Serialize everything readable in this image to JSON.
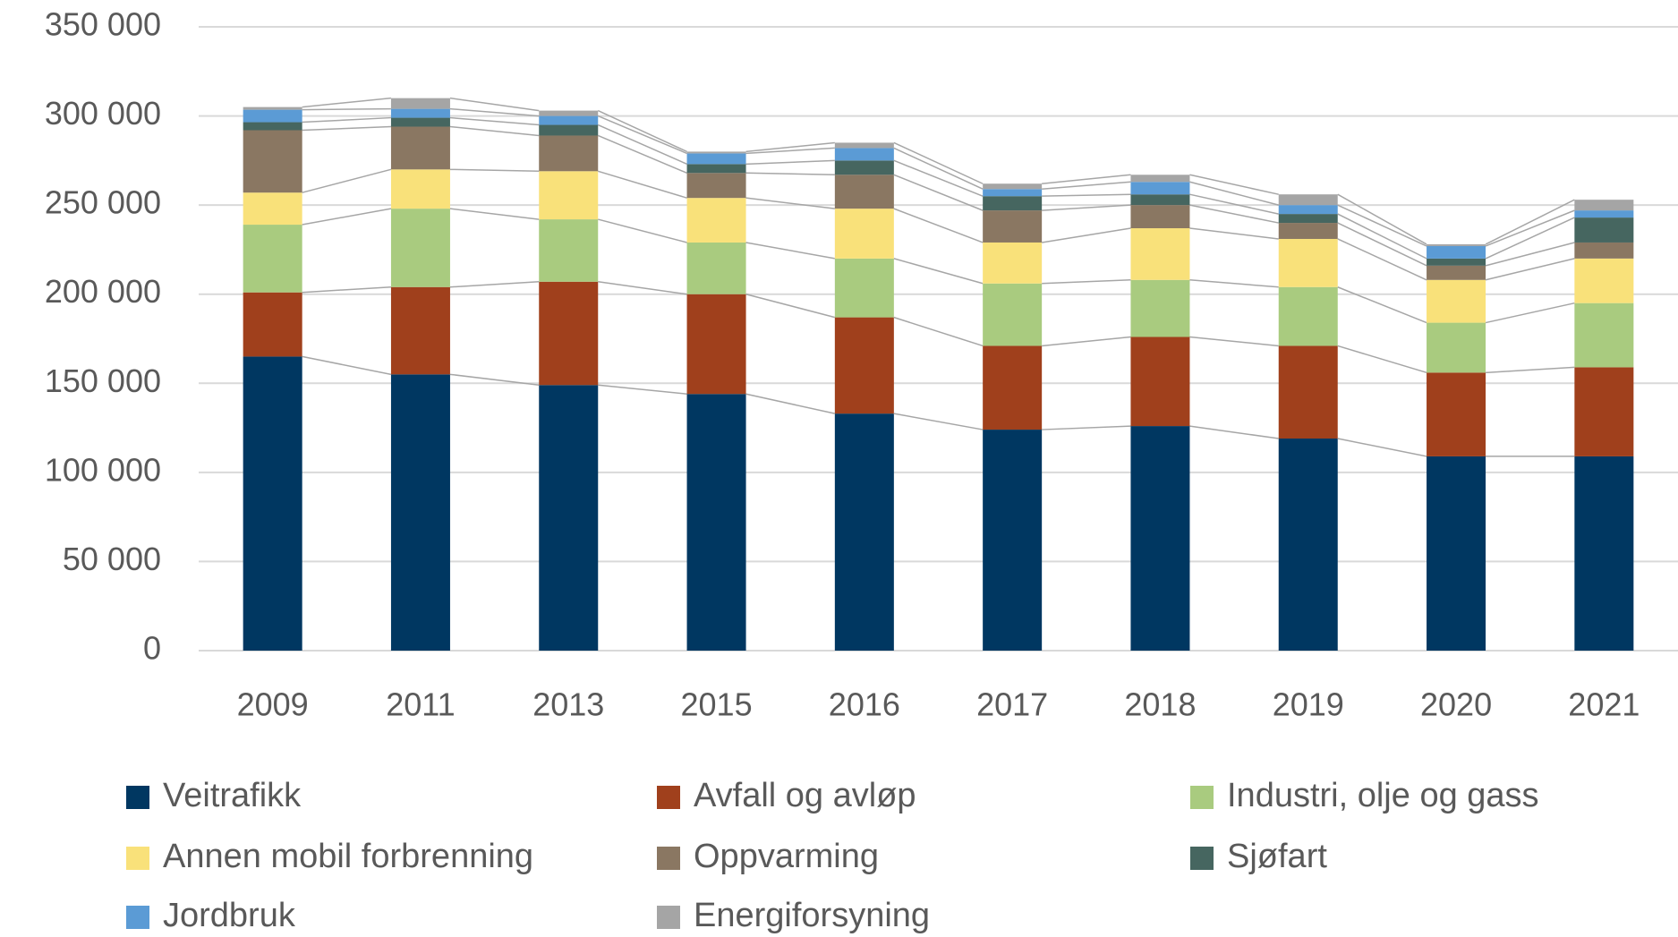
{
  "chart_data": {
    "type": "stacked-bar",
    "categories": [
      "2009",
      "2011",
      "2013",
      "2015",
      "2016",
      "2017",
      "2018",
      "2019",
      "2020",
      "2021"
    ],
    "series": [
      {
        "name": "Veitrafikk",
        "color": "#003761",
        "values": [
          165000,
          155000,
          149000,
          144000,
          133000,
          124000,
          126000,
          119000,
          109000,
          109000
        ]
      },
      {
        "name": "Avfall og avløp",
        "color": "#a0401c",
        "values": [
          36000,
          49000,
          58000,
          56000,
          54000,
          47000,
          50000,
          52000,
          47000,
          50000
        ]
      },
      {
        "name": "Industri, olje og gass",
        "color": "#a9cb7f",
        "values": [
          38000,
          44000,
          35000,
          29000,
          33000,
          35000,
          32000,
          33000,
          28000,
          36000
        ]
      },
      {
        "name": "Annen mobil forbrenning",
        "color": "#f9e17a",
        "values": [
          18000,
          22000,
          27000,
          25000,
          28000,
          23000,
          29000,
          27000,
          24000,
          25000
        ]
      },
      {
        "name": "Oppvarming",
        "color": "#8a7762",
        "values": [
          35000,
          24000,
          20000,
          14000,
          19000,
          18000,
          13000,
          9000,
          8000,
          9000
        ]
      },
      {
        "name": "Sjøfart",
        "color": "#466660",
        "values": [
          4500,
          5000,
          6000,
          5000,
          8000,
          8000,
          6000,
          5000,
          4000,
          14000
        ]
      },
      {
        "name": "Jordbruk",
        "color": "#5b9bd5",
        "values": [
          7000,
          5000,
          5000,
          6000,
          7000,
          4000,
          7000,
          5000,
          7000,
          4000
        ]
      },
      {
        "name": "Energiforsyning",
        "color": "#a5a5a5",
        "values": [
          1500,
          6000,
          3000,
          1000,
          3000,
          3000,
          4000,
          6000,
          1000,
          6000
        ]
      }
    ],
    "ylim": [
      0,
      350000
    ],
    "yticks": [
      0,
      {
        "value": 50000,
        "label": "50 000"
      },
      {
        "value": 100000,
        "label": "100 000"
      },
      {
        "value": 150000,
        "label": "150 000"
      },
      {
        "value": 200000,
        "label": "200 000"
      },
      {
        "value": 250000,
        "label": "250 000"
      },
      {
        "value": 300000,
        "label": "300 000"
      },
      {
        "value": 350000,
        "label": "350 000"
      }
    ],
    "grid": true,
    "legend": "bottom"
  }
}
